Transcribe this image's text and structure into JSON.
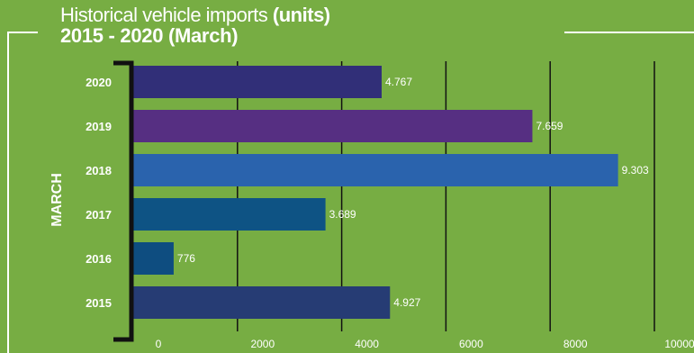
{
  "title": {
    "prefix": "Historical vehicle imports",
    "unit": "(units)",
    "subtitle": "2015 - 2020 (March)"
  },
  "chart_data": {
    "type": "bar",
    "orientation": "horizontal",
    "group_label": "MARCH",
    "categories": [
      "2020",
      "2019",
      "2018",
      "2017",
      "2016",
      "2015"
    ],
    "values": [
      4767,
      7659,
      9303,
      3689,
      776,
      4927
    ],
    "data_labels": [
      "4.767",
      "7.659",
      "9.303",
      "3.689",
      "776",
      "4.927"
    ],
    "bar_colors": [
      "#312f78",
      "#562f82",
      "#2a63ad",
      "#0e5384",
      "#0e4d80",
      "#263c74"
    ],
    "xlim": [
      0,
      10000
    ],
    "xticks": [
      0,
      2000,
      4000,
      6000,
      8000,
      10000
    ],
    "grid": true,
    "xlabel": "",
    "ylabel": ""
  }
}
